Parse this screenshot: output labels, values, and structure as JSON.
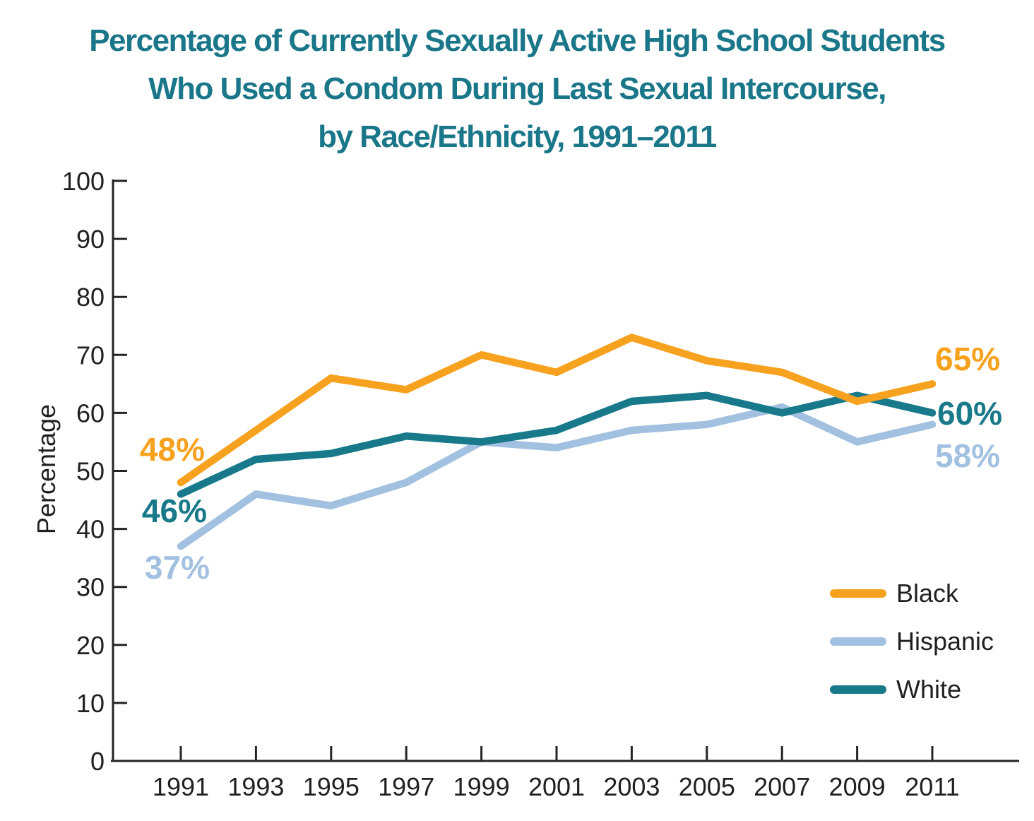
{
  "title": {
    "line1": "Percentage of Currently Sexually Active High School Students",
    "line2": "Who Used a Condom During Last Sexual Intercourse,",
    "line3": "by Race/Ethnicity, 1991–2011"
  },
  "colors": {
    "title_text": "#1A7689",
    "axis_line": "#262324",
    "axis_text": "#231F20",
    "black_series": "#F7A21E",
    "hispanic_series": "#A2C1E1",
    "white_series": "#17798A"
  },
  "chart_data": {
    "type": "line",
    "x": [
      1991,
      1993,
      1995,
      1997,
      1999,
      2001,
      2003,
      2005,
      2007,
      2009,
      2011
    ],
    "series": [
      {
        "name": "Black",
        "color_key": "black_series",
        "values": [
          48,
          57,
          66,
          64,
          70,
          67,
          73,
          69,
          67,
          62,
          65
        ],
        "start_label": "48%",
        "end_label": "65%"
      },
      {
        "name": "Hispanic",
        "color_key": "hispanic_series",
        "values": [
          37,
          46,
          44,
          48,
          55,
          54,
          57,
          58,
          61,
          55,
          58
        ],
        "start_label": "37%",
        "end_label": "58%"
      },
      {
        "name": "White",
        "color_key": "white_series",
        "values": [
          46,
          52,
          53,
          56,
          55,
          57,
          62,
          63,
          60,
          63,
          60
        ],
        "start_label": "46%",
        "end_label": "60%"
      }
    ],
    "xlabel": "",
    "ylabel": "Percentage",
    "ylim": [
      0,
      100
    ],
    "y_ticks": [
      0,
      10,
      20,
      30,
      40,
      50,
      60,
      70,
      80,
      90,
      100
    ],
    "grid": false,
    "legend_position": "bottom-right"
  },
  "legend": {
    "items": [
      {
        "label": "Black",
        "color_key": "black_series"
      },
      {
        "label": "Hispanic",
        "color_key": "hispanic_series"
      },
      {
        "label": "White",
        "color_key": "white_series"
      }
    ]
  }
}
